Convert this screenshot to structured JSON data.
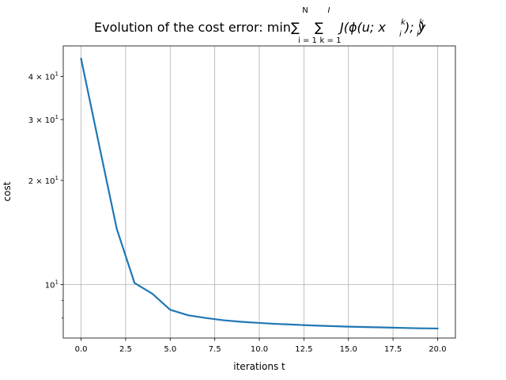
{
  "chart_data": {
    "type": "line",
    "title": {
      "prefix": "Evolution of the cost error: min",
      "sum1_top": "N",
      "sum1_bottom": "i = 1",
      "sum2_top": "I",
      "sum2_bottom": "k = 1",
      "sigma": "∑",
      "body": "J(ϕ(u; x",
      "x_sup": "k",
      "x_sub": "i",
      "mid": "); y",
      "y_sup": "k",
      "y_sub": "i",
      "end": ")"
    },
    "xlabel": "iterations t",
    "ylabel": "cost",
    "xscale": "linear",
    "yscale": "log",
    "xlim": [
      -1,
      21
    ],
    "ylim": [
      7.0,
      49.0
    ],
    "grid": "x and y major",
    "line_color": "#1f77b4",
    "x_ticks": [
      0,
      2.5,
      5,
      7.5,
      10,
      12.5,
      15,
      17.5,
      20
    ],
    "x_tick_labels": [
      "0.0",
      "2.5",
      "5.0",
      "7.5",
      "10.0",
      "12.5",
      "15.0",
      "17.5",
      "20.0"
    ],
    "y_major_ticks": [
      {
        "value": 10,
        "base": "10",
        "exp": "1",
        "prefix": ""
      },
      {
        "value": 20,
        "base": "10",
        "exp": "1",
        "prefix": "2 × "
      },
      {
        "value": 30,
        "base": "10",
        "exp": "1",
        "prefix": "3 × "
      },
      {
        "value": 40,
        "base": "10",
        "exp": "1",
        "prefix": "4 × "
      }
    ],
    "y_minor_ticks": [
      8,
      9
    ],
    "series": [
      {
        "name": "cost",
        "x": [
          0,
          1,
          2,
          3,
          4,
          5,
          6,
          7,
          8,
          9,
          10,
          11,
          12,
          13,
          14,
          15,
          16,
          17,
          18,
          19,
          20
        ],
        "y": [
          45.0,
          25.5,
          14.5,
          10.1,
          9.4,
          8.45,
          8.15,
          8.0,
          7.88,
          7.8,
          7.74,
          7.69,
          7.65,
          7.61,
          7.58,
          7.55,
          7.53,
          7.51,
          7.49,
          7.47,
          7.46
        ]
      }
    ]
  }
}
